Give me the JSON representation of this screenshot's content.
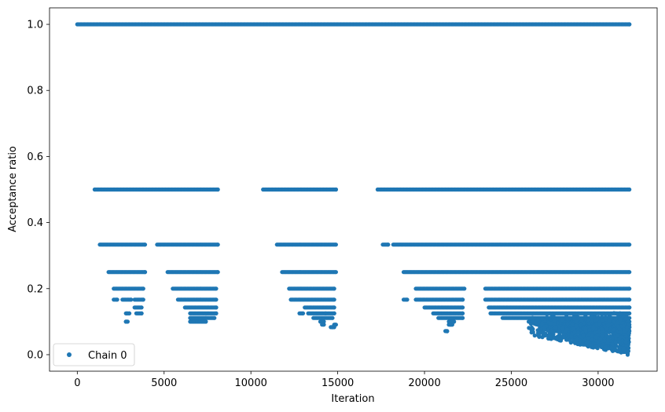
{
  "chart_data": {
    "type": "scatter",
    "xlabel": "Iteration",
    "ylabel": "Acceptance ratio",
    "xlim": [
      -1600,
      33400
    ],
    "ylim": [
      -0.05,
      1.05
    ],
    "x_ticks": [
      0,
      5000,
      10000,
      15000,
      20000,
      25000,
      30000
    ],
    "x_tick_labels": [
      "0",
      "5000",
      "10000",
      "15000",
      "20000",
      "25000",
      "30000"
    ],
    "y_ticks": [
      0.0,
      0.2,
      0.4,
      0.6,
      0.8,
      1.0
    ],
    "y_tick_labels": [
      "0.0",
      "0.2",
      "0.4",
      "0.6",
      "0.8",
      "1.0"
    ],
    "grid": false,
    "legend": {
      "position": "lower-left",
      "entries": [
        "Chain 0"
      ]
    },
    "colors": {
      "series": "#1f77b4"
    },
    "series": [
      {
        "name": "Chain 0",
        "levels": [
          {
            "y": 1.0,
            "ranges": [
              [
                0,
                31800
              ]
            ]
          },
          {
            "y": 0.5,
            "ranges": [
              [
                1000,
                8100
              ],
              [
                10700,
                14900
              ],
              [
                17300,
                31800
              ]
            ]
          },
          {
            "y": 0.3333,
            "ranges": [
              [
                1300,
                3900
              ],
              [
                4600,
                8100
              ],
              [
                11500,
                14900
              ],
              [
                17600,
                17900
              ],
              [
                18200,
                31800
              ]
            ]
          },
          {
            "y": 0.25,
            "ranges": [
              [
                1800,
                3900
              ],
              [
                5200,
                8100
              ],
              [
                11800,
                14900
              ],
              [
                18800,
                31800
              ]
            ]
          },
          {
            "y": 0.2,
            "ranges": [
              [
                2100,
                3800
              ],
              [
                5500,
                8000
              ],
              [
                12200,
                14800
              ],
              [
                19500,
                22300
              ],
              [
                23500,
                31800
              ]
            ]
          },
          {
            "y": 0.1667,
            "ranges": [
              [
                2100,
                2300
              ],
              [
                2600,
                3100
              ],
              [
                3300,
                3800
              ],
              [
                5800,
                8000
              ],
              [
                12300,
                14800
              ],
              [
                18800,
                19000
              ],
              [
                19500,
                22200
              ],
              [
                23500,
                31800
              ]
            ]
          },
          {
            "y": 0.1429,
            "ranges": [
              [
                3300,
                3700
              ],
              [
                6200,
                8000
              ],
              [
                13100,
                14800
              ],
              [
                20000,
                22200
              ],
              [
                23700,
                31800
              ]
            ]
          },
          {
            "y": 0.125,
            "ranges": [
              [
                2800,
                3000
              ],
              [
                3400,
                3700
              ],
              [
                6500,
                8000
              ],
              [
                12800,
                13000
              ],
              [
                13300,
                14800
              ],
              [
                20500,
                22200
              ],
              [
                23800,
                31800
              ]
            ]
          },
          {
            "y": 0.1111,
            "ranges": [
              [
                6500,
                7900
              ],
              [
                13600,
                14700
              ],
              [
                20800,
                22200
              ],
              [
                24500,
                31800
              ]
            ]
          },
          {
            "y": 0.1,
            "ranges": [
              [
                2800,
                2900
              ],
              [
                6500,
                7400
              ],
              [
                14000,
                14200
              ],
              [
                21400,
                21700
              ],
              [
                26000,
                31800
              ]
            ]
          },
          {
            "y": 0.0909,
            "ranges": [
              [
                14100,
                14200
              ],
              [
                14800,
                14900
              ],
              [
                21400,
                21600
              ],
              [
                26500,
                31800
              ]
            ]
          },
          {
            "y": 0.0833,
            "ranges": [
              [
                14600,
                14800
              ],
              [
                27000,
                31800
              ]
            ]
          },
          {
            "y": 0.0714,
            "ranges": [
              [
                21200,
                21300
              ],
              [
                27500,
                31800
              ]
            ]
          }
        ],
        "scatter_region": {
          "x": [
            26000,
            31800
          ],
          "y_min": 0.0,
          "y_max": 0.13,
          "count": 900
        },
        "extra_points": [
          [
            2800,
            0.1
          ],
          [
            2850,
            0.125
          ],
          [
            6700,
            0.1
          ],
          [
            7200,
            0.1
          ],
          [
            7400,
            0.111
          ],
          [
            14300,
            0.125
          ],
          [
            14700,
            0.083
          ],
          [
            14800,
            0.09
          ],
          [
            21300,
            0.071
          ],
          [
            21500,
            0.091
          ],
          [
            21600,
            0.1
          ],
          [
            31700,
            0.0
          ],
          [
            31750,
            0.02
          ],
          [
            31650,
            0.045
          ]
        ]
      }
    ]
  }
}
